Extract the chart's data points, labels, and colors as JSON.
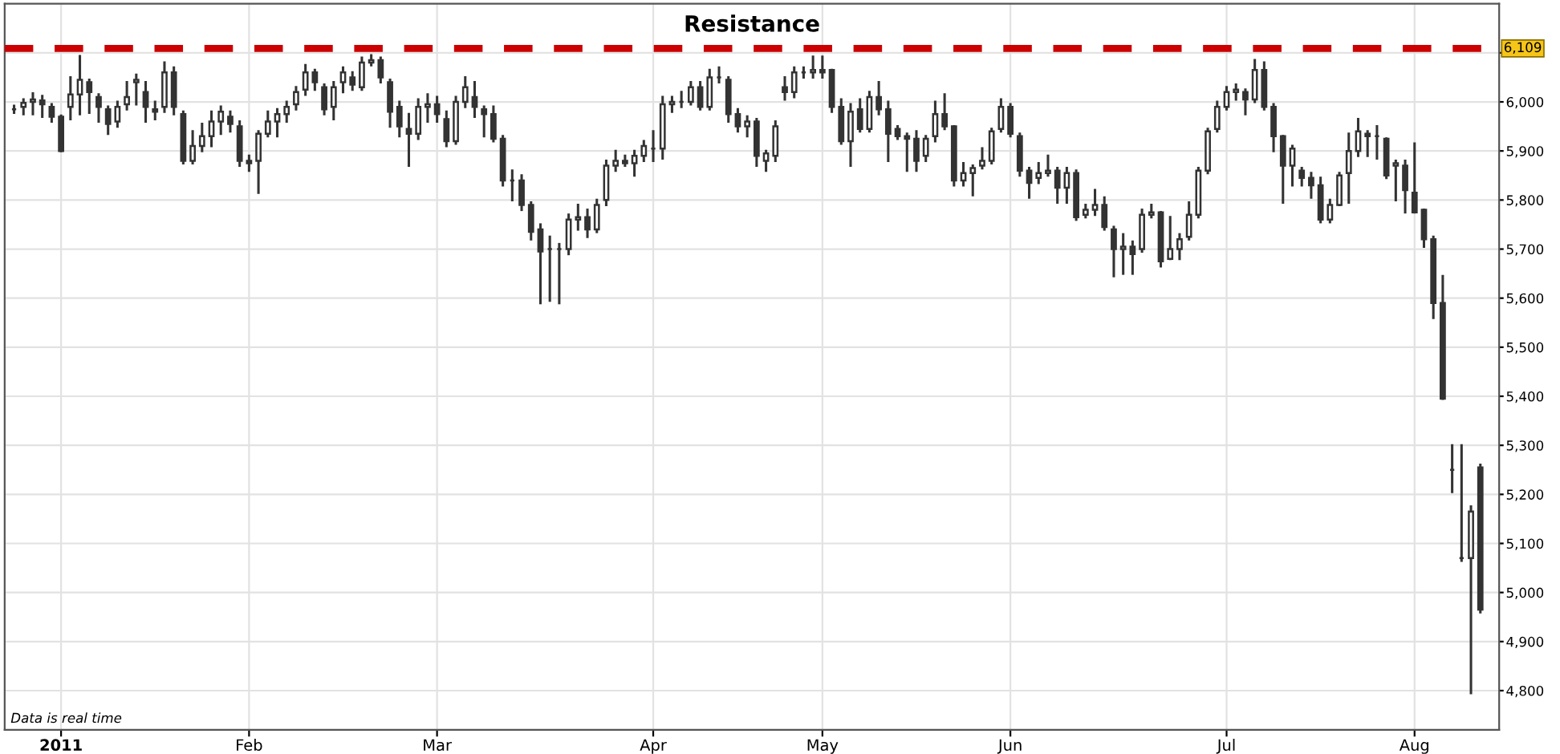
{
  "chart_data": {
    "type": "candlestick",
    "title": "Resistance",
    "categories": [
      null,
      null,
      null,
      null,
      null,
      "2011",
      null,
      null,
      null,
      null,
      null,
      null,
      null,
      null,
      null,
      null,
      null,
      null,
      null,
      null,
      null,
      null,
      null,
      null,
      null,
      "Feb",
      null,
      null,
      null,
      null,
      null,
      null,
      null,
      null,
      null,
      null,
      null,
      null,
      null,
      null,
      null,
      null,
      null,
      null,
      null,
      "Mar",
      null,
      null,
      null,
      null,
      null,
      null,
      null,
      null,
      null,
      null,
      null,
      null,
      null,
      null,
      null,
      null,
      null,
      null,
      null,
      null,
      null,
      null,
      "Apr",
      null,
      null,
      null,
      null,
      null,
      null,
      null,
      null,
      null,
      null,
      null,
      null,
      null,
      null,
      null,
      null,
      null,
      "May",
      null,
      null,
      null,
      null,
      null,
      null,
      null,
      null,
      null,
      null,
      null,
      null,
      null,
      null,
      null,
      null,
      null,
      null,
      null,
      "Jun",
      null,
      null,
      null,
      null,
      null,
      null,
      null,
      null,
      null,
      null,
      null,
      null,
      null,
      null,
      null,
      null,
      null,
      null,
      null,
      null,
      null,
      null,
      "Jul",
      null,
      null,
      null,
      null,
      null,
      null,
      null,
      null,
      null,
      null,
      null,
      null,
      null,
      null,
      null,
      null,
      null,
      null,
      null,
      "Aug",
      null,
      null,
      null,
      null,
      null,
      null,
      null
    ],
    "ohlc": [
      [
        5985,
        5992,
        5978,
        5985
      ],
      [
        5990,
        6005,
        5975,
        5998
      ],
      [
        6000,
        6017,
        5975,
        6005
      ],
      [
        6003,
        6012,
        5970,
        5995
      ],
      [
        5990,
        5995,
        5960,
        5970
      ],
      [
        5970,
        5972,
        5900,
        5900
      ],
      [
        5990,
        6050,
        5965,
        6015
      ],
      [
        6015,
        6093,
        5975,
        6045
      ],
      [
        6040,
        6045,
        5978,
        6020
      ],
      [
        6010,
        6015,
        5960,
        5990
      ],
      [
        5985,
        5990,
        5935,
        5955
      ],
      [
        5960,
        6000,
        5950,
        5990
      ],
      [
        5995,
        6040,
        5985,
        6010
      ],
      [
        6040,
        6055,
        5995,
        6045
      ],
      [
        6020,
        6040,
        5960,
        5990
      ],
      [
        5985,
        6000,
        5965,
        5980
      ],
      [
        5990,
        6080,
        5980,
        6060
      ],
      [
        6060,
        6070,
        5975,
        5990
      ],
      [
        5975,
        5980,
        5875,
        5880
      ],
      [
        5880,
        5940,
        5875,
        5910
      ],
      [
        5910,
        5955,
        5900,
        5930
      ],
      [
        5930,
        5980,
        5910,
        5960
      ],
      [
        5960,
        5990,
        5935,
        5980
      ],
      [
        5970,
        5980,
        5940,
        5955
      ],
      [
        5950,
        5960,
        5870,
        5880
      ],
      [
        5880,
        5890,
        5860,
        5875
      ],
      [
        5880,
        5940,
        5815,
        5935
      ],
      [
        5935,
        5980,
        5930,
        5960
      ],
      [
        5960,
        5985,
        5930,
        5975
      ],
      [
        5975,
        6000,
        5960,
        5990
      ],
      [
        5995,
        6030,
        5985,
        6020
      ],
      [
        6025,
        6075,
        6015,
        6060
      ],
      [
        6060,
        6065,
        6025,
        6040
      ],
      [
        6030,
        6035,
        5975,
        5985
      ],
      [
        5990,
        6040,
        5965,
        6030
      ],
      [
        6040,
        6070,
        6020,
        6060
      ],
      [
        6050,
        6060,
        6025,
        6035
      ],
      [
        6030,
        6090,
        6025,
        6080
      ],
      [
        6080,
        6095,
        6075,
        6085
      ],
      [
        6085,
        6090,
        6040,
        6050
      ],
      [
        6040,
        6045,
        5950,
        5980
      ],
      [
        5990,
        6000,
        5930,
        5950
      ],
      [
        5945,
        5975,
        5870,
        5935
      ],
      [
        5935,
        6005,
        5925,
        5990
      ],
      [
        5990,
        6015,
        5960,
        5995
      ],
      [
        5995,
        6010,
        5960,
        5975
      ],
      [
        5965,
        5980,
        5910,
        5920
      ],
      [
        5920,
        6010,
        5915,
        6000
      ],
      [
        6000,
        6050,
        5990,
        6030
      ],
      [
        6010,
        6040,
        5970,
        5990
      ],
      [
        5985,
        5990,
        5930,
        5975
      ],
      [
        5975,
        5990,
        5920,
        5925
      ],
      [
        5925,
        5930,
        5830,
        5840
      ],
      [
        5840,
        5860,
        5800,
        5840
      ],
      [
        5840,
        5850,
        5780,
        5790
      ],
      [
        5790,
        5795,
        5720,
        5735
      ],
      [
        5740,
        5750,
        5590,
        5695
      ],
      [
        5700,
        5725,
        5595,
        5700
      ],
      [
        5700,
        5710,
        5590,
        5700
      ],
      [
        5700,
        5770,
        5690,
        5760
      ],
      [
        5760,
        5790,
        5740,
        5765
      ],
      [
        5765,
        5780,
        5725,
        5740
      ],
      [
        5740,
        5800,
        5735,
        5790
      ],
      [
        5800,
        5880,
        5790,
        5870
      ],
      [
        5870,
        5900,
        5860,
        5880
      ],
      [
        5880,
        5890,
        5870,
        5875
      ],
      [
        5875,
        5900,
        5850,
        5890
      ],
      [
        5890,
        5920,
        5880,
        5910
      ],
      [
        5905,
        5940,
        5880,
        5905
      ],
      [
        5905,
        6010,
        5885,
        5995
      ],
      [
        5995,
        6010,
        5980,
        6000
      ],
      [
        6000,
        6020,
        5990,
        6000
      ],
      [
        6000,
        6040,
        5995,
        6030
      ],
      [
        6030,
        6040,
        5985,
        5990
      ],
      [
        5990,
        6065,
        5985,
        6050
      ],
      [
        6050,
        6070,
        6040,
        6050
      ],
      [
        6045,
        6050,
        5960,
        5975
      ],
      [
        5975,
        5985,
        5940,
        5950
      ],
      [
        5950,
        5970,
        5930,
        5960
      ],
      [
        5960,
        5965,
        5870,
        5890
      ],
      [
        5880,
        5900,
        5860,
        5895
      ],
      [
        5890,
        5960,
        5880,
        5950
      ],
      [
        6030,
        6050,
        6005,
        6020
      ],
      [
        6020,
        6070,
        6010,
        6060
      ],
      [
        6060,
        6070,
        6050,
        6060
      ],
      [
        6060,
        6092,
        6050,
        6065
      ],
      [
        6065,
        6092,
        6050,
        6060
      ],
      [
        6065,
        6065,
        5980,
        5990
      ],
      [
        5990,
        6005,
        5915,
        5920
      ],
      [
        5920,
        5995,
        5870,
        5980
      ],
      [
        5985,
        6005,
        5940,
        5945
      ],
      [
        5945,
        6020,
        5940,
        6010
      ],
      [
        6010,
        6040,
        5975,
        5985
      ],
      [
        5985,
        6000,
        5880,
        5935
      ],
      [
        5945,
        5950,
        5925,
        5930
      ],
      [
        5930,
        5935,
        5860,
        5925
      ],
      [
        5925,
        5940,
        5860,
        5880
      ],
      [
        5890,
        5930,
        5880,
        5925
      ],
      [
        5930,
        6000,
        5920,
        5975
      ],
      [
        5975,
        6015,
        5945,
        5950
      ],
      [
        5950,
        5950,
        5830,
        5840
      ],
      [
        5840,
        5875,
        5830,
        5855
      ],
      [
        5855,
        5870,
        5810,
        5865
      ],
      [
        5870,
        5905,
        5865,
        5880
      ],
      [
        5880,
        5945,
        5875,
        5940
      ],
      [
        5945,
        6005,
        5940,
        5990
      ],
      [
        5990,
        5995,
        5930,
        5935
      ],
      [
        5930,
        5935,
        5850,
        5860
      ],
      [
        5860,
        5865,
        5805,
        5835
      ],
      [
        5845,
        5875,
        5835,
        5855
      ],
      [
        5855,
        5890,
        5850,
        5860
      ],
      [
        5860,
        5865,
        5795,
        5825
      ],
      [
        5825,
        5865,
        5795,
        5855
      ],
      [
        5855,
        5860,
        5760,
        5765
      ],
      [
        5770,
        5790,
        5765,
        5780
      ],
      [
        5780,
        5820,
        5770,
        5790
      ],
      [
        5790,
        5805,
        5740,
        5745
      ],
      [
        5740,
        5745,
        5645,
        5700
      ],
      [
        5700,
        5730,
        5650,
        5705
      ],
      [
        5705,
        5715,
        5650,
        5690
      ],
      [
        5700,
        5780,
        5695,
        5770
      ],
      [
        5770,
        5790,
        5765,
        5775
      ],
      [
        5775,
        5775,
        5665,
        5675
      ],
      [
        5680,
        5765,
        5680,
        5700
      ],
      [
        5700,
        5730,
        5680,
        5720
      ],
      [
        5725,
        5795,
        5720,
        5770
      ],
      [
        5770,
        5865,
        5765,
        5860
      ],
      [
        5860,
        5945,
        5855,
        5940
      ],
      [
        5945,
        6000,
        5940,
        5990
      ],
      [
        5990,
        6030,
        5985,
        6020
      ],
      [
        6020,
        6035,
        6005,
        6025
      ],
      [
        6020,
        6025,
        5975,
        6005
      ],
      [
        6005,
        6085,
        6000,
        6065
      ],
      [
        6065,
        6080,
        5985,
        5990
      ],
      [
        5990,
        5995,
        5900,
        5930
      ],
      [
        5930,
        5930,
        5795,
        5870
      ],
      [
        5870,
        5910,
        5830,
        5905
      ],
      [
        5860,
        5865,
        5830,
        5845
      ],
      [
        5845,
        5855,
        5805,
        5830
      ],
      [
        5830,
        5845,
        5755,
        5760
      ],
      [
        5760,
        5800,
        5755,
        5790
      ],
      [
        5790,
        5855,
        5790,
        5850
      ],
      [
        5855,
        5935,
        5795,
        5900
      ],
      [
        5900,
        5965,
        5890,
        5940
      ],
      [
        5935,
        5940,
        5890,
        5930
      ],
      [
        5930,
        5950,
        5885,
        5930
      ],
      [
        5925,
        5925,
        5845,
        5850
      ],
      [
        5870,
        5880,
        5800,
        5875
      ],
      [
        5870,
        5880,
        5775,
        5820
      ],
      [
        5815,
        5915,
        5775,
        5775
      ],
      [
        5780,
        5780,
        5705,
        5720
      ],
      [
        5720,
        5725,
        5560,
        5590
      ],
      [
        5590,
        5645,
        5395,
        5395
      ],
      [
        5250,
        5300,
        5205,
        5250
      ],
      [
        5070,
        5300,
        5065,
        5070
      ],
      [
        5070,
        5175,
        4795,
        5165
      ],
      [
        5255,
        5260,
        4960,
        4965
      ]
    ],
    "color": "#333333",
    "ylim": [
      4720,
      6200
    ],
    "yticks": [
      {
        "value": 4800,
        "label": "4,800"
      },
      {
        "value": 4900,
        "label": "4,900"
      },
      {
        "value": 5000,
        "label": "5,000"
      },
      {
        "value": 5100,
        "label": "5,100"
      },
      {
        "value": 5200,
        "label": "5,200"
      },
      {
        "value": 5300,
        "label": "5,300"
      },
      {
        "value": 5400,
        "label": "5,400"
      },
      {
        "value": 5500,
        "label": "5,500"
      },
      {
        "value": 5600,
        "label": "5,600"
      },
      {
        "value": 5700,
        "label": "5,700"
      },
      {
        "value": 5800,
        "label": "5,800"
      },
      {
        "value": 5900,
        "label": "5,900"
      },
      {
        "value": 6000,
        "label": "6,000"
      },
      {
        "value": 6100,
        "label": null
      }
    ],
    "ref_lines": [
      {
        "axis": "y",
        "value": 6109,
        "label": "6,109",
        "color": "#cc0000",
        "line_style": "dashed"
      }
    ],
    "annotations": [
      "Data is real time"
    ],
    "grid": true
  }
}
